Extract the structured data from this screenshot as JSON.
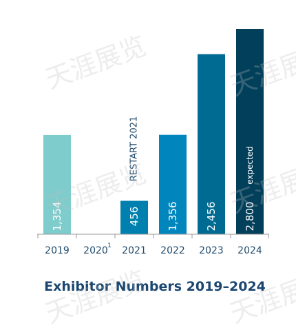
{
  "chart_data": {
    "type": "bar",
    "title": "Exhibitor Numbers 2019–2024",
    "categories": [
      "2019",
      "2020",
      "2021",
      "2022",
      "2023",
      "2024"
    ],
    "category_superscripts": [
      "",
      "1",
      "",
      "",
      "",
      ""
    ],
    "values": [
      1354,
      null,
      456,
      1356,
      2456,
      2800
    ],
    "value_labels": [
      "1,354",
      "",
      "456",
      "1,356",
      "2,456",
      "2,800"
    ],
    "bar_colors": [
      "#7ecccc",
      null,
      "#0080ae",
      "#0086bd",
      "#006b92",
      "#013f5a"
    ],
    "annotations": [
      {
        "category": "2021",
        "text": "RESTART 2021"
      },
      {
        "category": "2024",
        "text": "expected"
      }
    ],
    "ylim": [
      0,
      2800
    ],
    "xlabel": "",
    "ylabel": "",
    "grid": false,
    "legend": "none",
    "label_color": "#1f4a6b",
    "title_color": "#1a4670"
  },
  "watermark": "天涯展览"
}
